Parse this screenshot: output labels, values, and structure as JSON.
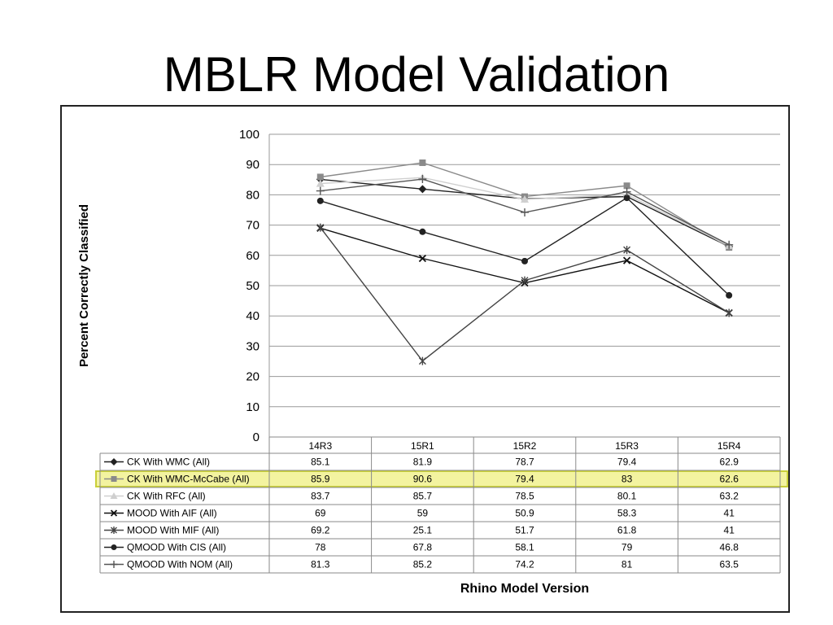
{
  "slide": {
    "title": "MBLR Model Validation"
  },
  "highlight_color": "#f3f3a0",
  "highlight_border": "#c9cf3a",
  "chart_data": {
    "type": "line",
    "title": "",
    "xlabel": "Rhino Model Version",
    "ylabel": "Percent Correctly Classified",
    "ylim": [
      0,
      100
    ],
    "yticks": [
      0,
      10,
      20,
      30,
      40,
      50,
      60,
      70,
      80,
      90,
      100
    ],
    "grid": true,
    "legend": "data-table",
    "categories": [
      "14R3",
      "15R1",
      "15R2",
      "15R3",
      "15R4"
    ],
    "highlighted_series": "CK With WMC-McCabe (All)",
    "series": [
      {
        "name": "CK With WMC (All)",
        "values": [
          85.1,
          81.9,
          78.7,
          79.4,
          62.9
        ],
        "marker": "diamond",
        "color": "#222222"
      },
      {
        "name": "CK With WMC-McCabe (All)",
        "values": [
          85.9,
          90.6,
          79.4,
          83,
          62.6
        ],
        "marker": "square",
        "color": "#8a8a8a"
      },
      {
        "name": "CK With RFC (All)",
        "values": [
          83.7,
          85.7,
          78.5,
          80.1,
          63.2
        ],
        "marker": "triangle",
        "color": "#cfcfcf"
      },
      {
        "name": "MOOD With AIF (All)",
        "values": [
          69,
          59,
          50.9,
          58.3,
          41
        ],
        "marker": "x",
        "color": "#111111"
      },
      {
        "name": "MOOD With MIF (All)",
        "values": [
          69.2,
          25.1,
          51.7,
          61.8,
          41
        ],
        "marker": "star",
        "color": "#444444"
      },
      {
        "name": "QMOOD With CIS (All)",
        "values": [
          78,
          67.8,
          58.1,
          79,
          46.8
        ],
        "marker": "circle",
        "color": "#222222"
      },
      {
        "name": "QMOOD With NOM (All)",
        "values": [
          81.3,
          85.2,
          74.2,
          81,
          63.5
        ],
        "marker": "plus",
        "color": "#555555"
      }
    ]
  }
}
